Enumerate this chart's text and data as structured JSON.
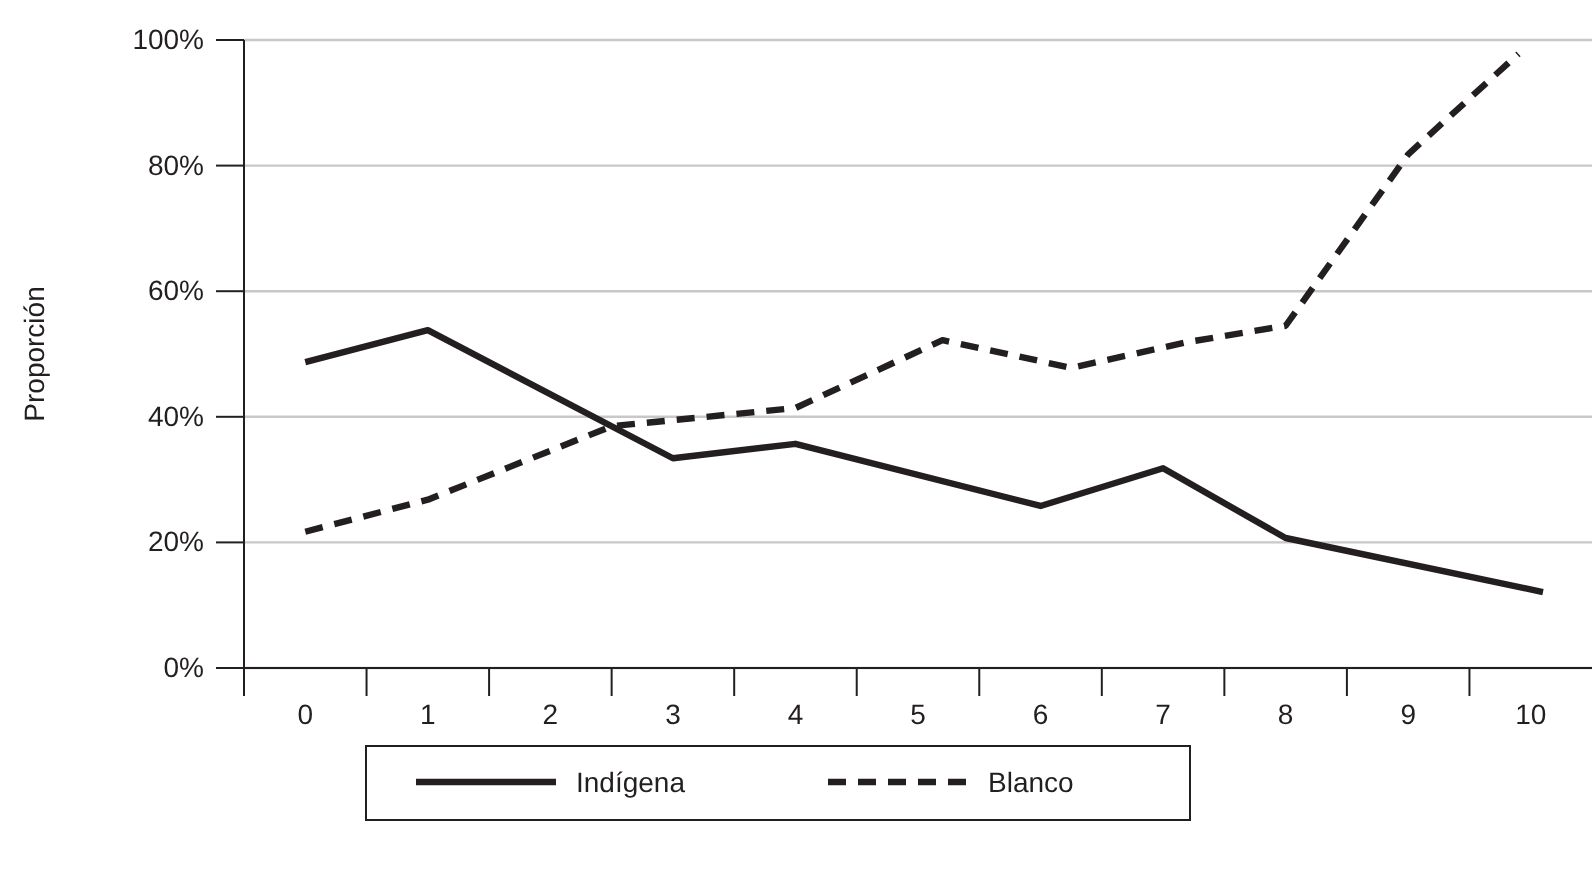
{
  "chart_data": {
    "type": "line",
    "ylabel": "Proporción",
    "xlim": [
      -0.5,
      10.5
    ],
    "xticks": [
      {
        "value": -0.5,
        "label": null
      },
      0,
      {
        "value": 0.5,
        "label": null
      },
      1,
      {
        "value": 1.5,
        "label": null
      },
      2,
      {
        "value": 2.5,
        "label": null
      },
      3,
      {
        "value": 3.5,
        "label": null
      },
      4,
      {
        "value": 4.5,
        "label": null
      },
      5,
      {
        "value": 5.5,
        "label": null
      },
      6,
      {
        "value": 6.5,
        "label": null
      },
      7,
      {
        "value": 7.5,
        "label": null
      },
      8,
      {
        "value": 8.5,
        "label": null
      },
      9,
      {
        "value": 9.5,
        "label": null
      },
      10
    ],
    "ylim": [
      0,
      100
    ],
    "yticks": [
      {
        "value": 0,
        "label": "0%"
      },
      {
        "value": 20,
        "label": "20%"
      },
      {
        "value": 40,
        "label": "40%"
      },
      {
        "value": 60,
        "label": "60%"
      },
      {
        "value": 80,
        "label": "80%"
      },
      {
        "value": 100,
        "label": "100%"
      }
    ],
    "grid": "y",
    "legend": "bottom",
    "series": [
      {
        "name": "Indígena",
        "color": "#231f20",
        "line_style": "solid",
        "x": [
          0,
          1,
          3,
          4,
          6,
          7,
          8,
          10.1
        ],
        "values": [
          48.7,
          53.8,
          33.4,
          35.7,
          25.8,
          31.8,
          20.7,
          12.1
        ]
      },
      {
        "name": "Blanco",
        "color": "#231f20",
        "line_style": "dashed",
        "x": [
          0,
          1,
          2.5,
          4,
          5.2,
          6.25,
          7.2,
          8,
          9,
          9.9
        ],
        "values": [
          21.7,
          26.8,
          38.5,
          41.4,
          52.2,
          47.8,
          51.9,
          54.5,
          81.8,
          97.8
        ]
      }
    ]
  }
}
